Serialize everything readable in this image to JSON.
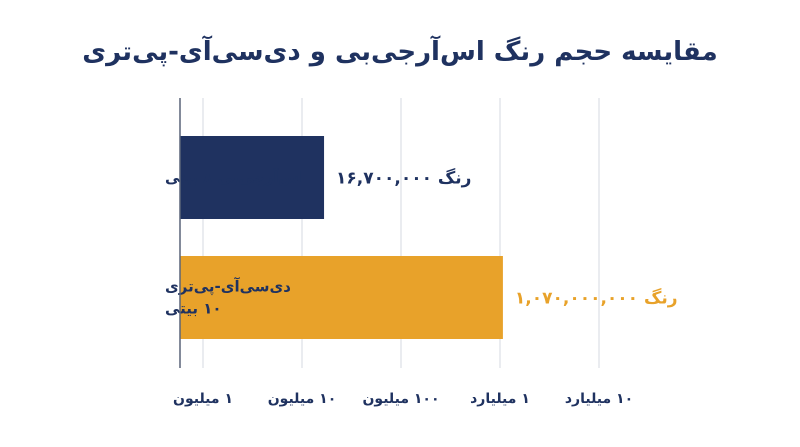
{
  "chart_data": {
    "type": "bar",
    "orientation": "horizontal",
    "title": "مقایسه حجم رنگ اس‌آرجی‌بی و دی‌سی‌آی-پی‌تری",
    "x_scale": "log",
    "xlim": [
      1000000,
      10000000000
    ],
    "x_ticks": [
      {
        "value": 1000000,
        "label": "۱ میلیون"
      },
      {
        "value": 10000000,
        "label": "۱۰ میلیون"
      },
      {
        "value": 100000000,
        "label": "۱۰۰ میلیون"
      },
      {
        "value": 1000000000,
        "label": "۱ میلیارد"
      },
      {
        "value": 10000000000,
        "label": "۱۰ میلیارد"
      }
    ],
    "categories": [
      {
        "lines": [
          "اس‌آرجی‌بی ۸ بیتی"
        ]
      },
      {
        "lines": [
          "دی‌سی‌آی-پی‌تری",
          "۱۰ بیتی"
        ]
      }
    ],
    "values": [
      16700000,
      1070000000
    ],
    "value_labels": [
      "۱۶,۷۰۰,۰۰۰ رنگ",
      "۱,۰۷۰,۰۰۰,۰۰۰ رنگ"
    ],
    "colors": [
      "#1f3260",
      "#e8a22a"
    ],
    "label_colors": [
      "#1f3260",
      "#e8a22a"
    ],
    "grid": true
  }
}
